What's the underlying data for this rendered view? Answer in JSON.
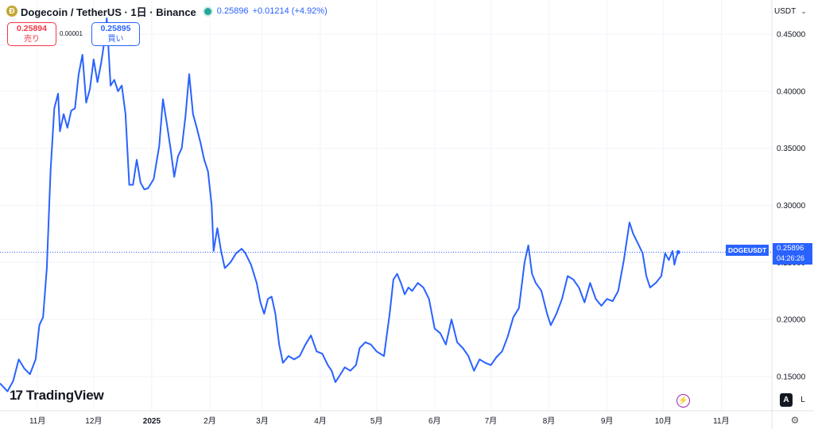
{
  "header": {
    "title": "Dogecoin / TetherUS · 1日 · Binance",
    "coin_glyph": "Ð",
    "last_price": "0.25896",
    "change": "+0.01214 (+4.92%)",
    "status_color": "#26a69a"
  },
  "quote": {
    "sell_price": "0.25894",
    "sell_label": "売り",
    "spread": "0.00001",
    "buy_price": "0.25895",
    "buy_label": "買い"
  },
  "currency_button": {
    "label": "USDT"
  },
  "price_tag": {
    "symbol": "DOGEUSDT",
    "price": "0.25896",
    "countdown": "04:26:26"
  },
  "footer": {
    "logo_mark": "17",
    "logo_text": "TradingView",
    "auto_label": "A",
    "log_label": "L"
  },
  "icons": {
    "coin": "dogecoin-icon",
    "settings": "gear-icon",
    "bolt": "lightning-icon",
    "chevron": "chevron-down-icon"
  },
  "colors": {
    "line": "#2962ff",
    "sell": "#f23645",
    "buy": "#2962ff",
    "status": "#26a69a"
  },
  "chart_data": {
    "type": "line",
    "series": [
      {
        "values": [
          [
            "2024-10-12",
            0.144
          ],
          [
            "2024-10-16",
            0.137
          ],
          [
            "2024-10-19",
            0.146
          ],
          [
            "2024-10-22",
            0.165
          ],
          [
            "2024-10-25",
            0.157
          ],
          [
            "2024-10-28",
            0.152
          ],
          [
            "2024-10-31",
            0.165
          ],
          [
            "2024-11-02",
            0.195
          ],
          [
            "2024-11-04",
            0.202
          ],
          [
            "2024-11-06",
            0.245
          ],
          [
            "2024-11-08",
            0.33
          ],
          [
            "2024-11-10",
            0.385
          ],
          [
            "2024-11-12",
            0.398
          ],
          [
            "2024-11-13",
            0.365
          ],
          [
            "2024-11-15",
            0.38
          ],
          [
            "2024-11-17",
            0.368
          ],
          [
            "2024-11-19",
            0.383
          ],
          [
            "2024-11-21",
            0.385
          ],
          [
            "2024-11-23",
            0.415
          ],
          [
            "2024-11-25",
            0.432
          ],
          [
            "2024-11-27",
            0.39
          ],
          [
            "2024-11-29",
            0.402
          ],
          [
            "2024-12-01",
            0.428
          ],
          [
            "2024-12-03",
            0.408
          ],
          [
            "2024-12-05",
            0.425
          ],
          [
            "2024-12-07",
            0.447
          ],
          [
            "2024-12-08",
            0.464
          ],
          [
            "2024-12-10",
            0.405
          ],
          [
            "2024-12-12",
            0.41
          ],
          [
            "2024-12-14",
            0.4
          ],
          [
            "2024-12-16",
            0.405
          ],
          [
            "2024-12-18",
            0.38
          ],
          [
            "2024-12-20",
            0.318
          ],
          [
            "2024-12-22",
            0.318
          ],
          [
            "2024-12-24",
            0.34
          ],
          [
            "2024-12-26",
            0.32
          ],
          [
            "2024-12-28",
            0.314
          ],
          [
            "2024-12-30",
            0.315
          ],
          [
            "2025-01-02",
            0.323
          ],
          [
            "2025-01-05",
            0.352
          ],
          [
            "2025-01-07",
            0.393
          ],
          [
            "2025-01-09",
            0.372
          ],
          [
            "2025-01-11",
            0.35
          ],
          [
            "2025-01-13",
            0.325
          ],
          [
            "2025-01-15",
            0.343
          ],
          [
            "2025-01-17",
            0.35
          ],
          [
            "2025-01-19",
            0.378
          ],
          [
            "2025-01-21",
            0.415
          ],
          [
            "2025-01-23",
            0.38
          ],
          [
            "2025-01-25",
            0.368
          ],
          [
            "2025-01-27",
            0.355
          ],
          [
            "2025-01-29",
            0.34
          ],
          [
            "2025-01-31",
            0.33
          ],
          [
            "2025-02-02",
            0.3
          ],
          [
            "2025-02-03",
            0.26
          ],
          [
            "2025-02-05",
            0.28
          ],
          [
            "2025-02-07",
            0.26
          ],
          [
            "2025-02-09",
            0.245
          ],
          [
            "2025-02-12",
            0.25
          ],
          [
            "2025-02-15",
            0.258
          ],
          [
            "2025-02-18",
            0.262
          ],
          [
            "2025-02-20",
            0.258
          ],
          [
            "2025-02-23",
            0.248
          ],
          [
            "2025-02-26",
            0.232
          ],
          [
            "2025-02-28",
            0.215
          ],
          [
            "2025-03-02",
            0.205
          ],
          [
            "2025-03-04",
            0.218
          ],
          [
            "2025-03-06",
            0.22
          ],
          [
            "2025-03-08",
            0.205
          ],
          [
            "2025-03-10",
            0.178
          ],
          [
            "2025-03-12",
            0.162
          ],
          [
            "2025-03-15",
            0.168
          ],
          [
            "2025-03-18",
            0.165
          ],
          [
            "2025-03-21",
            0.168
          ],
          [
            "2025-03-24",
            0.178
          ],
          [
            "2025-03-27",
            0.186
          ],
          [
            "2025-03-30",
            0.172
          ],
          [
            "2025-04-02",
            0.17
          ],
          [
            "2025-04-05",
            0.16
          ],
          [
            "2025-04-07",
            0.155
          ],
          [
            "2025-04-09",
            0.145
          ],
          [
            "2025-04-11",
            0.15
          ],
          [
            "2025-04-14",
            0.158
          ],
          [
            "2025-04-17",
            0.155
          ],
          [
            "2025-04-20",
            0.16
          ],
          [
            "2025-04-22",
            0.175
          ],
          [
            "2025-04-25",
            0.18
          ],
          [
            "2025-04-28",
            0.178
          ],
          [
            "2025-05-01",
            0.172
          ],
          [
            "2025-05-05",
            0.168
          ],
          [
            "2025-05-08",
            0.205
          ],
          [
            "2025-05-10",
            0.235
          ],
          [
            "2025-05-12",
            0.24
          ],
          [
            "2025-05-14",
            0.232
          ],
          [
            "2025-05-16",
            0.222
          ],
          [
            "2025-05-18",
            0.228
          ],
          [
            "2025-05-20",
            0.225
          ],
          [
            "2025-05-23",
            0.232
          ],
          [
            "2025-05-26",
            0.228
          ],
          [
            "2025-05-29",
            0.218
          ],
          [
            "2025-06-01",
            0.192
          ],
          [
            "2025-06-04",
            0.188
          ],
          [
            "2025-06-07",
            0.178
          ],
          [
            "2025-06-10",
            0.2
          ],
          [
            "2025-06-13",
            0.18
          ],
          [
            "2025-06-16",
            0.175
          ],
          [
            "2025-06-19",
            0.168
          ],
          [
            "2025-06-22",
            0.155
          ],
          [
            "2025-06-25",
            0.165
          ],
          [
            "2025-06-28",
            0.162
          ],
          [
            "2025-07-01",
            0.16
          ],
          [
            "2025-07-04",
            0.167
          ],
          [
            "2025-07-07",
            0.172
          ],
          [
            "2025-07-10",
            0.185
          ],
          [
            "2025-07-13",
            0.202
          ],
          [
            "2025-07-16",
            0.21
          ],
          [
            "2025-07-19",
            0.25
          ],
          [
            "2025-07-21",
            0.265
          ],
          [
            "2025-07-23",
            0.24
          ],
          [
            "2025-07-25",
            0.232
          ],
          [
            "2025-07-28",
            0.225
          ],
          [
            "2025-07-31",
            0.205
          ],
          [
            "2025-08-02",
            0.195
          ],
          [
            "2025-08-05",
            0.205
          ],
          [
            "2025-08-08",
            0.218
          ],
          [
            "2025-08-11",
            0.238
          ],
          [
            "2025-08-14",
            0.235
          ],
          [
            "2025-08-17",
            0.228
          ],
          [
            "2025-08-20",
            0.215
          ],
          [
            "2025-08-23",
            0.232
          ],
          [
            "2025-08-26",
            0.218
          ],
          [
            "2025-08-29",
            0.212
          ],
          [
            "2025-09-01",
            0.218
          ],
          [
            "2025-09-04",
            0.216
          ],
          [
            "2025-09-07",
            0.225
          ],
          [
            "2025-09-10",
            0.252
          ],
          [
            "2025-09-13",
            0.285
          ],
          [
            "2025-09-15",
            0.275
          ],
          [
            "2025-09-18",
            0.265
          ],
          [
            "2025-09-20",
            0.258
          ],
          [
            "2025-09-22",
            0.238
          ],
          [
            "2025-09-24",
            0.228
          ],
          [
            "2025-09-27",
            0.232
          ],
          [
            "2025-09-30",
            0.238
          ],
          [
            "2025-10-02",
            0.258
          ],
          [
            "2025-10-04",
            0.252
          ],
          [
            "2025-10-06",
            0.26
          ],
          [
            "2025-10-07",
            0.248
          ],
          [
            "2025-10-08",
            0.255
          ],
          [
            "2025-10-09",
            0.25896
          ]
        ]
      }
    ],
    "current_price": 0.25896,
    "yticks": [
      "0.45000",
      "0.40000",
      "0.35000",
      "0.30000",
      "0.25000",
      "0.20000",
      "0.15000"
    ],
    "ytick_values": [
      0.45,
      0.4,
      0.35,
      0.3,
      0.25,
      0.2,
      0.15
    ],
    "xticks": [
      {
        "label": "11月",
        "date": "2024-11-01"
      },
      {
        "label": "12月",
        "date": "2024-12-01"
      },
      {
        "label": "2025",
        "date": "2025-01-01",
        "bold": true
      },
      {
        "label": "2月",
        "date": "2025-02-01"
      },
      {
        "label": "3月",
        "date": "2025-03-01"
      },
      {
        "label": "4月",
        "date": "2025-04-01"
      },
      {
        "label": "5月",
        "date": "2025-05-01"
      },
      {
        "label": "6月",
        "date": "2025-06-01"
      },
      {
        "label": "7月",
        "date": "2025-07-01"
      },
      {
        "label": "8月",
        "date": "2025-08-01"
      },
      {
        "label": "9月",
        "date": "2025-09-01"
      },
      {
        "label": "10月",
        "date": "2025-10-01"
      },
      {
        "label": "11月",
        "date": "2025-11-01"
      }
    ],
    "x_range": [
      "2024-10-12",
      "2025-11-28"
    ],
    "y_range": [
      0.12,
      0.48
    ],
    "grid": true,
    "line_color": "#2962ff"
  }
}
